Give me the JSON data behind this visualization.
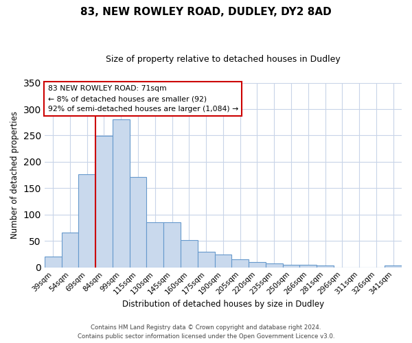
{
  "title": "83, NEW ROWLEY ROAD, DUDLEY, DY2 8AD",
  "subtitle": "Size of property relative to detached houses in Dudley",
  "xlabel": "Distribution of detached houses by size in Dudley",
  "ylabel": "Number of detached properties",
  "categories": [
    "39sqm",
    "54sqm",
    "69sqm",
    "84sqm",
    "99sqm",
    "115sqm",
    "130sqm",
    "145sqm",
    "160sqm",
    "175sqm",
    "190sqm",
    "205sqm",
    "220sqm",
    "235sqm",
    "250sqm",
    "266sqm",
    "281sqm",
    "296sqm",
    "311sqm",
    "326sqm",
    "341sqm"
  ],
  "values": [
    20,
    66,
    176,
    249,
    281,
    171,
    85,
    85,
    52,
    30,
    24,
    15,
    10,
    8,
    5,
    5,
    3,
    0,
    0,
    0,
    3
  ],
  "bar_color": "#c9d9ed",
  "bar_edge_color": "#6699cc",
  "vline_x": 2.5,
  "vline_color": "#cc0000",
  "annotation_line1": "83 NEW ROWLEY ROAD: 71sqm",
  "annotation_line2": "← 8% of detached houses are smaller (92)",
  "annotation_line3": "92% of semi-detached houses are larger (1,084) →",
  "box_edge_color": "#cc0000",
  "ylim": [
    0,
    350
  ],
  "footer_line1": "Contains HM Land Registry data © Crown copyright and database right 2024.",
  "footer_line2": "Contains public sector information licensed under the Open Government Licence v3.0.",
  "background_color": "#ffffff",
  "grid_color": "#c8d4e8"
}
